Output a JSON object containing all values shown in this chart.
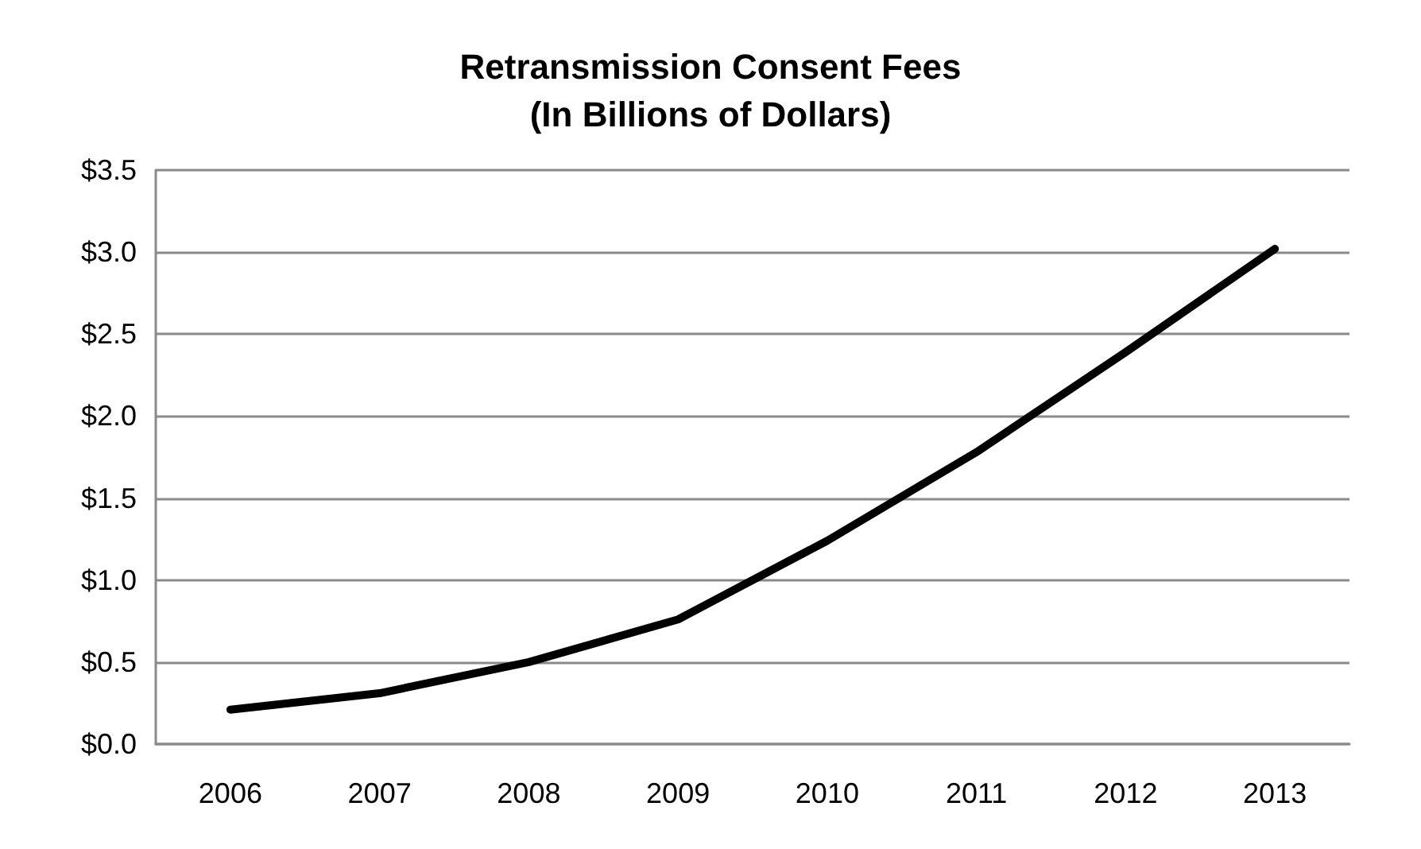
{
  "chart_data": {
    "type": "line",
    "title": "Retransmission Consent Fees\n(In Billions of Dollars)",
    "categories": [
      "2006",
      "2007",
      "2008",
      "2009",
      "2010",
      "2011",
      "2012",
      "2013"
    ],
    "series": [
      {
        "color": "#000000",
        "values": [
          0.21,
          0.31,
          0.5,
          0.76,
          1.24,
          1.78,
          2.39,
          3.02
        ]
      }
    ],
    "ylim": [
      0,
      3.5
    ],
    "yticks": [
      {
        "value": 0,
        "label": "$0.0"
      },
      {
        "value": 0.5,
        "label": "$0.5"
      },
      {
        "value": 1,
        "label": "$1.0"
      },
      {
        "value": 1.5,
        "label": "$1.5"
      },
      {
        "value": 2,
        "label": "$2.0"
      },
      {
        "value": 2.5,
        "label": "$2.5"
      },
      {
        "value": 3,
        "label": "$3.0"
      },
      {
        "value": 3.5,
        "label": "$3.5"
      }
    ],
    "grid": "y",
    "marker": "none",
    "line_style": "solid"
  }
}
